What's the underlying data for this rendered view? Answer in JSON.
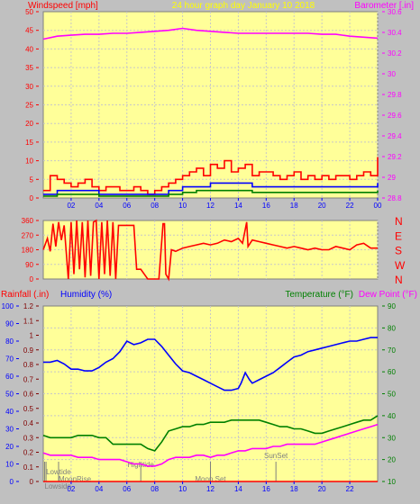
{
  "colors": {
    "background": "#c0c0c0",
    "plot_bg": "#ffff99",
    "grid": "#c8c8c8",
    "red": "#ff0000",
    "magenta": "#ff00ff",
    "yellow": "#ffff00",
    "blue": "#0000ff",
    "green": "#008000",
    "dark_red": "#800000",
    "events": "#808080"
  },
  "chart_data": [
    {
      "type": "line",
      "panel": "wind-barometer",
      "title": "24 hour graph day   January 10 2018",
      "ylabel_left": "Windspeed [mph]",
      "ylabel_right": "Barometer [.in]",
      "ylim_left": [
        0,
        50
      ],
      "ylim_right": [
        28.8,
        30.7
      ],
      "yticks_left": [
        "0",
        "5",
        "10",
        "15",
        "20",
        "25",
        "30",
        "35",
        "40",
        "45",
        "50"
      ],
      "yticks_right": [
        "28.8",
        "29",
        "29.2",
        "29.4",
        "29.6",
        "29.8",
        "30",
        "30.2",
        "30.4",
        "30.6"
      ],
      "x_tick_labels": [
        "02",
        "04",
        "06",
        "08",
        "10",
        "12",
        "14",
        "16",
        "18",
        "20",
        "22",
        "00"
      ],
      "x_hours": [
        2,
        4,
        6,
        8,
        10,
        12,
        14,
        16,
        18,
        20,
        22,
        24
      ],
      "xlim_hours": [
        0,
        24
      ],
      "series": [
        {
          "name": "Barometer",
          "color": "#ff00ff",
          "axis": "right",
          "x": [
            0,
            1,
            2,
            3,
            4,
            5,
            6,
            7,
            8,
            9,
            10,
            11,
            12,
            13,
            14,
            15,
            16,
            17,
            18,
            19,
            20,
            21,
            22,
            23,
            24
          ],
          "y": [
            30.42,
            30.45,
            30.46,
            30.47,
            30.47,
            30.48,
            30.48,
            30.49,
            30.5,
            30.51,
            30.53,
            30.51,
            30.5,
            30.49,
            30.48,
            30.48,
            30.48,
            30.48,
            30.48,
            30.48,
            30.47,
            30.47,
            30.45,
            30.44,
            30.43
          ]
        },
        {
          "name": "Wind gust",
          "color": "#ff0000",
          "axis": "left",
          "x": [
            0,
            0.5,
            1,
            1.5,
            2,
            2.5,
            3,
            3.5,
            4,
            4.5,
            5,
            5.5,
            6,
            6.5,
            7,
            7.5,
            8,
            8.5,
            9,
            9.5,
            10,
            10.5,
            11,
            11.5,
            12,
            12.5,
            13,
            13.5,
            14,
            14.5,
            15,
            15.5,
            16,
            16.5,
            17,
            17.5,
            18,
            18.5,
            19,
            19.5,
            20,
            20.5,
            21,
            21.5,
            22,
            22.5,
            23,
            23.5,
            24
          ],
          "y": [
            2,
            6,
            5,
            4,
            3,
            4,
            5,
            3,
            2,
            3,
            3,
            2,
            2,
            3,
            2,
            1,
            2,
            3,
            4,
            5,
            6,
            7,
            8,
            6,
            9,
            8,
            10,
            7,
            8,
            9,
            6,
            7,
            7,
            6,
            5,
            6,
            7,
            5,
            6,
            5,
            6,
            5,
            6,
            6,
            5,
            6,
            7,
            6,
            11
          ]
        },
        {
          "name": "Wind speed",
          "color": "#0000ff",
          "axis": "left",
          "x": [
            0,
            1,
            2,
            3,
            4,
            5,
            6,
            7,
            8,
            9,
            10,
            11,
            12,
            13,
            14,
            15,
            16,
            17,
            18,
            19,
            20,
            21,
            22,
            23,
            24
          ],
          "y": [
            1,
            2,
            2,
            2,
            1,
            1,
            1,
            1,
            1,
            2,
            3,
            3,
            4,
            4,
            4,
            3,
            3,
            3,
            3,
            3,
            3,
            3,
            3,
            3,
            4
          ]
        },
        {
          "name": "Wind average",
          "color": "#008000",
          "axis": "left",
          "x": [
            0,
            1,
            2,
            3,
            4,
            5,
            6,
            7,
            8,
            9,
            10,
            11,
            12,
            13,
            14,
            15,
            16,
            17,
            18,
            19,
            20,
            21,
            22,
            23,
            24
          ],
          "y": [
            0.5,
            1,
            1,
            1,
            0.5,
            0.5,
            0.5,
            0.5,
            0.5,
            1,
            1.5,
            2,
            2,
            2,
            2,
            1.5,
            1.5,
            1.5,
            1.5,
            1.5,
            1.5,
            1.5,
            1.5,
            1.5,
            2
          ]
        }
      ]
    },
    {
      "type": "line",
      "panel": "wind-direction",
      "ylim": [
        0,
        360
      ],
      "yticks": [
        "0",
        "90",
        "180",
        "270",
        "360"
      ],
      "compass_labels": [
        "N",
        "W",
        "S",
        "E",
        "N"
      ],
      "xlim_hours": [
        0,
        24
      ],
      "series": [
        {
          "name": "Wind direction",
          "color": "#ff0000",
          "x": [
            0,
            0.3,
            0.5,
            0.7,
            0.9,
            1.1,
            1.3,
            1.5,
            1.8,
            2.0,
            2.2,
            2.4,
            2.6,
            2.8,
            3.0,
            3.2,
            3.4,
            3.6,
            3.8,
            4.0,
            4.2,
            4.4,
            4.6,
            4.8,
            5.0,
            5.2,
            5.4,
            5.6,
            6.0,
            6.3,
            6.5,
            6.7,
            6.8,
            7.0,
            7.5,
            8.0,
            8.3,
            8.6,
            8.7,
            8.8,
            9.0,
            9.2,
            9.5,
            10.0,
            10.5,
            11.0,
            11.5,
            12.0,
            12.5,
            13.0,
            13.5,
            14.0,
            14.3,
            14.6,
            14.7,
            15.0,
            15.5,
            16.0,
            16.5,
            17.0,
            17.5,
            18.0,
            18.5,
            19.0,
            19.5,
            20.0,
            20.5,
            21.0,
            21.5,
            22.0,
            22.5,
            23.0,
            23.5,
            24
          ],
          "y": [
            180,
            250,
            170,
            340,
            200,
            350,
            240,
            330,
            0,
            350,
            30,
            360,
            60,
            350,
            10,
            360,
            20,
            350,
            360,
            0,
            350,
            30,
            360,
            20,
            350,
            0,
            330,
            330,
            330,
            330,
            330,
            60,
            60,
            60,
            0,
            0,
            0,
            340,
            340,
            30,
            0,
            180,
            170,
            190,
            200,
            210,
            220,
            210,
            220,
            240,
            230,
            250,
            220,
            350,
            200,
            240,
            230,
            220,
            210,
            200,
            190,
            200,
            190,
            180,
            190,
            180,
            180,
            200,
            190,
            180,
            210,
            220,
            190,
            190
          ]
        }
      ]
    },
    {
      "type": "line",
      "panel": "rain-humidity-temperature",
      "ylabel_left_1": "Rainfall (.in)",
      "ylabel_left_2": "Humidity (%)",
      "ylabel_right_1": "Temperature (°F)",
      "ylabel_right_2": "Dew Point (°F)",
      "ylim_rain": [
        0,
        1.2
      ],
      "ylim_humidity": [
        0,
        100
      ],
      "ylim_temp": [
        10,
        90
      ],
      "yticks_rain": [
        "0",
        "0.1",
        "0.2",
        "0.3",
        "0.4",
        "0.5",
        "0.6",
        "0.7",
        "0.8",
        "0.9",
        "1",
        "1.1",
        "1.2"
      ],
      "yticks_humidity": [
        "0",
        "10",
        "20",
        "30",
        "40",
        "50",
        "60",
        "70",
        "80",
        "90",
        "100"
      ],
      "yticks_temp": [
        "10",
        "20",
        "30",
        "40",
        "50",
        "60",
        "70",
        "80",
        "90"
      ],
      "x_tick_labels": [
        "02",
        "04",
        "06",
        "08",
        "10",
        "12",
        "14",
        "16",
        "18",
        "20",
        "22"
      ],
      "x_hours": [
        2,
        4,
        6,
        8,
        10,
        12,
        14,
        16,
        18,
        20,
        22
      ],
      "xlim_hours": [
        0,
        24
      ],
      "events": [
        {
          "label": "Lowtide",
          "hour": 0.2,
          "row": 1
        },
        {
          "label": "MoonRise",
          "hour": 1.1,
          "row": 2
        },
        {
          "label": "Lowside",
          "hour": 0.1,
          "row": 3
        },
        {
          "label": "Hightide",
          "hour": 7.0,
          "row": 0
        },
        {
          "label": "Moon Set",
          "hour": 12.0,
          "row": 2
        },
        {
          "label": "SunSet",
          "hour": 16.7,
          "row": -1
        }
      ],
      "series": [
        {
          "name": "Humidity",
          "color": "#0000ff",
          "axis": "humidity",
          "x": [
            0,
            0.5,
            1,
            1.5,
            2,
            2.5,
            3,
            3.5,
            4,
            4.5,
            5,
            5.5,
            6,
            6.5,
            7,
            7.5,
            8,
            8.5,
            9,
            9.5,
            10,
            10.5,
            11,
            11.5,
            12,
            12.5,
            13,
            13.5,
            14,
            14.2,
            14.5,
            14.8,
            15,
            15.5,
            16,
            16.5,
            17,
            17.5,
            18,
            18.5,
            19,
            19.5,
            20,
            20.5,
            21,
            21.5,
            22,
            22.5,
            23,
            23.5,
            24
          ],
          "y": [
            68,
            68,
            69,
            67,
            64,
            64,
            63,
            63,
            65,
            68,
            70,
            74,
            80,
            78,
            79,
            81,
            81,
            77,
            72,
            67,
            63,
            62,
            60,
            58,
            56,
            54,
            52,
            52,
            53,
            56,
            62,
            58,
            56,
            58,
            60,
            62,
            65,
            68,
            71,
            72,
            74,
            75,
            76,
            77,
            78,
            79,
            80,
            80,
            81,
            82,
            82
          ]
        },
        {
          "name": "Temperature",
          "color": "#008000",
          "axis": "temp",
          "x": [
            0,
            0.5,
            1,
            1.5,
            2,
            2.5,
            3,
            3.5,
            4,
            4.5,
            5,
            5.5,
            6,
            6.5,
            7,
            7.5,
            8,
            8.5,
            9,
            9.5,
            10,
            10.5,
            11,
            11.5,
            12,
            12.5,
            13,
            13.5,
            14,
            14.5,
            15,
            15.5,
            16,
            16.5,
            17,
            17.5,
            18,
            18.5,
            19,
            19.5,
            20,
            20.5,
            21,
            21.5,
            22,
            22.5,
            23,
            23.5,
            24
          ],
          "y": [
            31,
            30,
            30,
            30,
            30,
            31,
            31,
            31,
            30,
            30,
            27,
            27,
            27,
            27,
            27,
            25,
            24,
            28,
            33,
            34,
            35,
            35,
            36,
            36,
            37,
            37,
            37,
            38,
            38,
            38,
            38,
            38,
            37,
            36,
            35,
            35,
            34,
            34,
            33,
            32,
            32,
            33,
            34,
            35,
            36,
            37,
            38,
            38,
            40
          ]
        },
        {
          "name": "Dew Point",
          "color": "#ff00ff",
          "axis": "temp",
          "x": [
            0,
            0.5,
            1,
            1.5,
            2,
            2.5,
            3,
            3.5,
            4,
            4.5,
            5,
            5.5,
            6,
            6.5,
            7,
            7.5,
            8,
            8.5,
            9,
            9.5,
            10,
            10.5,
            11,
            11.5,
            12,
            12.5,
            13,
            13.5,
            14,
            14.5,
            15,
            15.5,
            16,
            16.5,
            17,
            17.5,
            18,
            18.5,
            19,
            19.5,
            20,
            20.5,
            21,
            21.5,
            22,
            22.5,
            23,
            23.5,
            24
          ],
          "y": [
            23,
            22,
            22,
            22,
            22,
            21,
            21,
            21,
            20,
            20,
            20,
            20,
            19,
            18,
            18,
            17,
            17,
            18,
            20,
            21,
            21,
            21,
            22,
            22,
            21,
            22,
            22,
            23,
            24,
            24,
            25,
            25,
            25,
            26,
            26,
            27,
            27,
            27,
            27,
            27,
            28,
            29,
            30,
            31,
            32,
            33,
            34,
            35,
            36
          ]
        },
        {
          "name": "Rainfall",
          "color": "#ff0000",
          "axis": "rain",
          "x": [
            0,
            24
          ],
          "y": [
            0,
            0
          ]
        }
      ]
    }
  ]
}
